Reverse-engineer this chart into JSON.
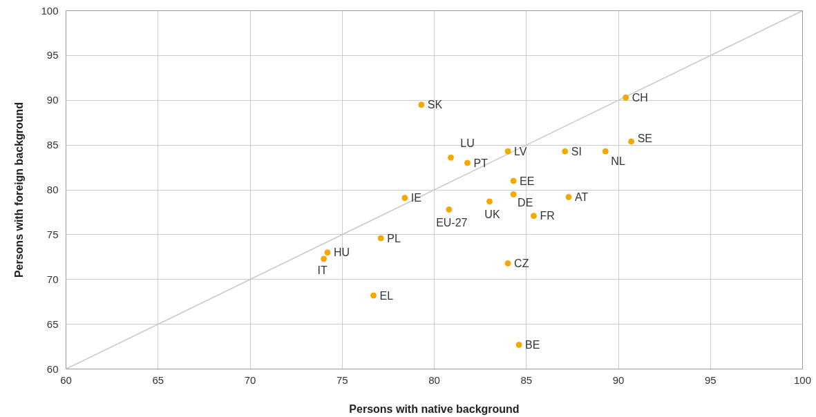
{
  "chart_data": {
    "type": "scatter",
    "xlabel": "Persons with native background",
    "ylabel": "Persons with foreign background",
    "xlim": [
      60,
      100
    ],
    "ylim": [
      60,
      100
    ],
    "xticks": [
      60,
      65,
      70,
      75,
      80,
      85,
      90,
      95,
      100
    ],
    "yticks": [
      60,
      65,
      70,
      75,
      80,
      85,
      90,
      95,
      100
    ],
    "grid": true,
    "marker": "circle",
    "series": [
      {
        "type": "line",
        "marker": "none",
        "color": "#c8c8c8",
        "x": [
          60,
          100
        ],
        "values": [
          60,
          100
        ]
      },
      {
        "color": "#f5a800",
        "x": [
          79.3,
          90.4,
          90.7,
          80.9,
          81.8,
          84.0,
          87.1,
          89.3,
          84.3,
          78.4,
          84.3,
          87.3,
          83.0,
          80.8,
          85.4,
          77.1,
          74.2,
          74.0,
          84.0,
          76.7,
          84.6
        ],
        "values": [
          89.5,
          90.3,
          85.4,
          83.6,
          83.0,
          84.3,
          84.3,
          84.3,
          81.0,
          79.1,
          79.5,
          79.2,
          78.7,
          77.8,
          77.1,
          74.6,
          73.0,
          72.3,
          71.8,
          68.2,
          62.7
        ]
      }
    ],
    "annotations": [
      {
        "text": "SK",
        "x": 79.3,
        "y": 89.5
      },
      {
        "text": "CH",
        "x": 90.4,
        "y": 90.3
      },
      {
        "text": "SE",
        "x": 90.7,
        "y": 85.4
      },
      {
        "text": "LU",
        "x": 80.9,
        "y": 83.6
      },
      {
        "text": "PT",
        "x": 81.8,
        "y": 83.0
      },
      {
        "text": "LV",
        "x": 84.0,
        "y": 84.3
      },
      {
        "text": "SI",
        "x": 87.1,
        "y": 84.3
      },
      {
        "text": "NL",
        "x": 89.3,
        "y": 84.3
      },
      {
        "text": "EE",
        "x": 84.3,
        "y": 81.0
      },
      {
        "text": "IE",
        "x": 78.4,
        "y": 79.1
      },
      {
        "text": "DE",
        "x": 84.3,
        "y": 79.5
      },
      {
        "text": "AT",
        "x": 87.3,
        "y": 79.2
      },
      {
        "text": "UK",
        "x": 83.0,
        "y": 78.7
      },
      {
        "text": "EU-27",
        "x": 80.8,
        "y": 77.8
      },
      {
        "text": "FR",
        "x": 85.4,
        "y": 77.1
      },
      {
        "text": "PL",
        "x": 77.1,
        "y": 74.6
      },
      {
        "text": "HU",
        "x": 74.2,
        "y": 73.0
      },
      {
        "text": "IT",
        "x": 74.0,
        "y": 72.3
      },
      {
        "text": "CZ",
        "x": 84.0,
        "y": 71.8
      },
      {
        "text": "EL",
        "x": 76.7,
        "y": 68.2
      },
      {
        "text": "BE",
        "x": 84.6,
        "y": 62.7
      }
    ]
  }
}
